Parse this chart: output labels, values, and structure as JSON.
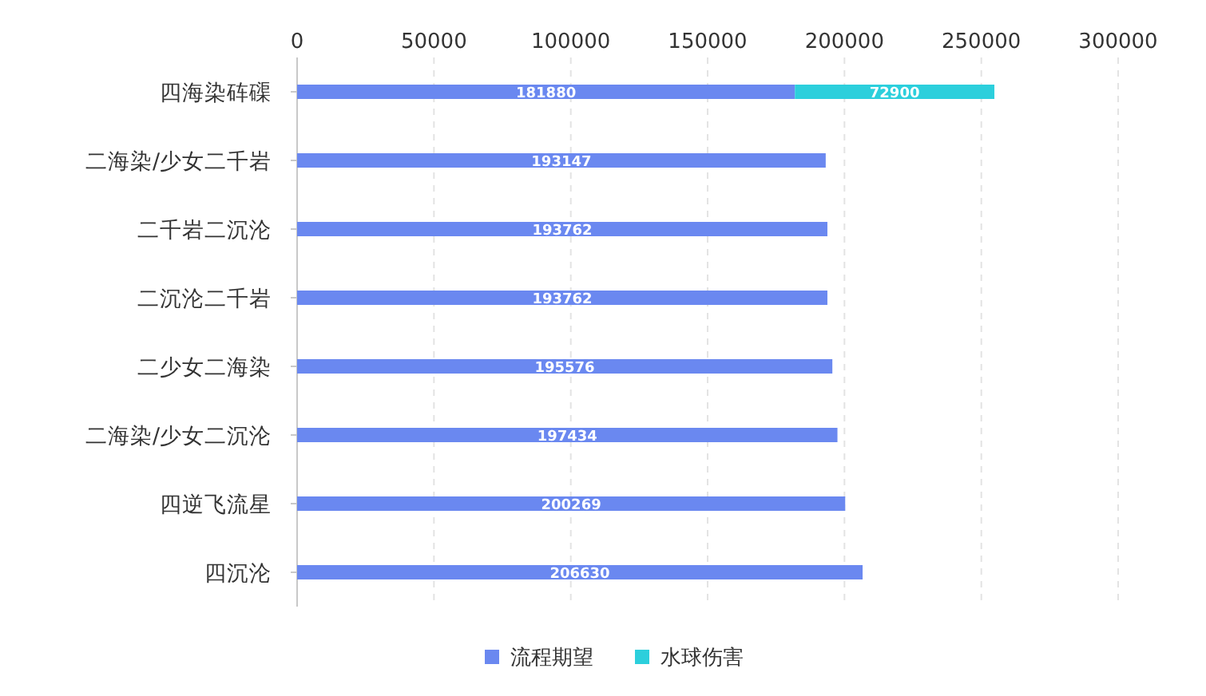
{
  "chart_data": {
    "type": "bar",
    "orientation": "horizontal",
    "stacked": true,
    "categories": [
      "四海染砗磲",
      "二海染/少女二千岩",
      "二千岩二沉沦",
      "二沉沦二千岩",
      "二少女二海染",
      "二海染/少女二沉沦",
      "四逆飞流星",
      "四沉沦"
    ],
    "series": [
      {
        "name": "流程期望",
        "color": "#6a88f0",
        "values": [
          181880,
          193147,
          193762,
          193762,
          195576,
          197434,
          200269,
          206630
        ]
      },
      {
        "name": "水球伤害",
        "color": "#2ccfdc",
        "values": [
          72900,
          null,
          null,
          null,
          null,
          null,
          null,
          null
        ]
      }
    ],
    "xlim": [
      0,
      300000
    ],
    "xticks": [
      0,
      50000,
      100000,
      150000,
      200000,
      250000,
      300000
    ],
    "grid": "x",
    "legend": "bottom",
    "data_labels": true
  }
}
